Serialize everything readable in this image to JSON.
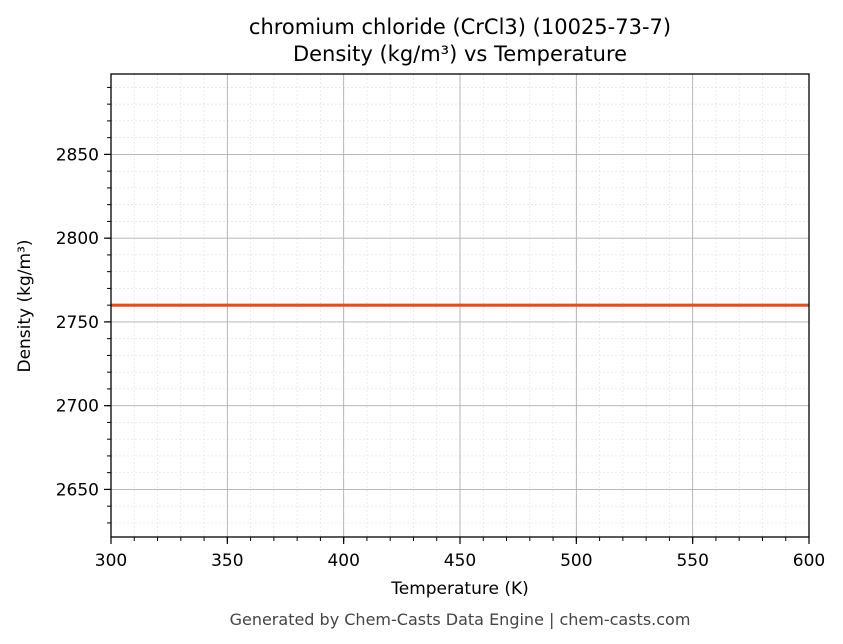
{
  "chart_data": {
    "type": "line",
    "title": "chromium chloride (CrCl3) (10025-73-7)",
    "subtitle": "Density (kg/m³) vs Temperature",
    "xlabel": "Temperature (K)",
    "ylabel": "Density (kg/m³)",
    "xlim": [
      300,
      600
    ],
    "ylim": [
      2621.6,
      2898
    ],
    "x_ticks": [
      300,
      350,
      400,
      450,
      500,
      550,
      600
    ],
    "y_ticks": [
      2650,
      2700,
      2750,
      2800,
      2850
    ],
    "x_minor_step": 10,
    "y_minor_step": 10,
    "grid": true,
    "legend": null,
    "series": [
      {
        "name": "Density",
        "color": "#d35427",
        "x": [
          300,
          600
        ],
        "values": [
          2760,
          2760
        ]
      }
    ],
    "footer": "Generated by Chem-Casts Data Engine | chem-casts.com"
  }
}
